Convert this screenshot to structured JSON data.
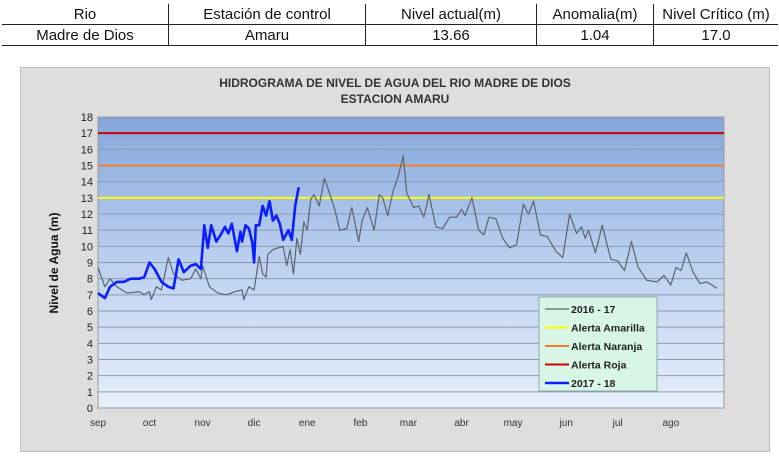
{
  "table": {
    "headers": [
      "Rio",
      "Estación de control",
      "Nivel actual(m)",
      "Anomalia(m)",
      "Nivel Crítico (m)"
    ],
    "row": [
      "Madre de Dios",
      "Amaru",
      "13.66",
      "1.04",
      "17.0"
    ]
  },
  "chart_data": {
    "type": "line",
    "title": "HIDROGRAMA DE NIVEL DE AGUA DEL RIO MADRE DE DIOS",
    "subtitle": "ESTACION AMARU",
    "xlabel": "",
    "ylabel": "Nivel de Agua (m)",
    "ylim": [
      0,
      18
    ],
    "yticks": [
      "0",
      "1",
      "2",
      "3",
      "4",
      "5",
      "6",
      "7",
      "8",
      "9",
      "10",
      "11",
      "12",
      "13",
      "14",
      "15",
      "16",
      "17",
      "18"
    ],
    "xticks": [
      "sep",
      "oct",
      "nov",
      "dic",
      "ene",
      "feb",
      "mar",
      "abr",
      "may",
      "jun",
      "jul",
      "ago"
    ],
    "grid": true,
    "legend_position": "bottom-right",
    "thresholds": [
      {
        "name": "Alerta Amarilla",
        "value": 13,
        "color": "#ffff00"
      },
      {
        "name": "Alerta Naranja",
        "value": 15,
        "color": "#f07f2c"
      },
      {
        "name": "Alerta Roja",
        "value": 17,
        "color": "#d00000"
      }
    ],
    "series": [
      {
        "name": "2016 - 17",
        "color": "#5a6472",
        "points": [
          [
            "09-01",
            8.7
          ],
          [
            "09-05",
            7.5
          ],
          [
            "09-08",
            8.0
          ],
          [
            "09-12",
            7.5
          ],
          [
            "09-18",
            7.1
          ],
          [
            "09-25",
            7.2
          ],
          [
            "09-28",
            7.0
          ],
          [
            "10-01",
            7.2
          ],
          [
            "10-02",
            6.7
          ],
          [
            "10-05",
            7.5
          ],
          [
            "10-08",
            7.3
          ],
          [
            "10-12",
            9.3
          ],
          [
            "10-15",
            8.3
          ],
          [
            "10-20",
            7.9
          ],
          [
            "10-25",
            8.0
          ],
          [
            "10-28",
            8.6
          ],
          [
            "10-31",
            8.0
          ],
          [
            "11-01",
            8.8
          ],
          [
            "11-05",
            7.5
          ],
          [
            "11-10",
            7.1
          ],
          [
            "11-15",
            7.0
          ],
          [
            "11-20",
            7.2
          ],
          [
            "11-24",
            7.3
          ],
          [
            "11-25",
            6.7
          ],
          [
            "11-28",
            7.5
          ],
          [
            "12-01",
            7.3
          ],
          [
            "12-04",
            9.4
          ],
          [
            "12-06",
            8.3
          ],
          [
            "12-08",
            8.1
          ],
          [
            "12-09",
            9.5
          ],
          [
            "12-12",
            9.8
          ],
          [
            "12-18",
            10.0
          ],
          [
            "12-20",
            8.8
          ],
          [
            "12-22",
            9.8
          ],
          [
            "12-24",
            8.3
          ],
          [
            "12-26",
            10.5
          ],
          [
            "12-28",
            9.5
          ],
          [
            "12-30",
            11.5
          ],
          [
            "01-01",
            11.0
          ],
          [
            "01-03",
            12.9
          ],
          [
            "01-05",
            13.2
          ],
          [
            "01-08",
            12.5
          ],
          [
            "01-11",
            14.2
          ],
          [
            "01-14",
            13.3
          ],
          [
            "01-17",
            12.3
          ],
          [
            "01-20",
            11.0
          ],
          [
            "01-24",
            11.1
          ],
          [
            "01-27",
            12.4
          ],
          [
            "01-31",
            10.3
          ],
          [
            "02-02",
            11.6
          ],
          [
            "02-05",
            12.4
          ],
          [
            "02-09",
            11.0
          ],
          [
            "02-12",
            13.2
          ],
          [
            "02-14",
            13.0
          ],
          [
            "02-17",
            11.9
          ],
          [
            "02-20",
            13.4
          ],
          [
            "02-23",
            14.3
          ],
          [
            "02-26",
            15.6
          ],
          [
            "02-28",
            13.3
          ],
          [
            "03-04",
            12.4
          ],
          [
            "03-07",
            12.5
          ],
          [
            "03-10",
            11.8
          ],
          [
            "03-13",
            13.2
          ],
          [
            "03-17",
            11.2
          ],
          [
            "03-21",
            11.1
          ],
          [
            "03-25",
            11.8
          ],
          [
            "03-29",
            11.8
          ],
          [
            "04-01",
            12.3
          ],
          [
            "04-03",
            11.9
          ],
          [
            "04-07",
            13.0
          ],
          [
            "04-11",
            11.0
          ],
          [
            "04-14",
            10.7
          ],
          [
            "04-17",
            11.8
          ],
          [
            "04-21",
            11.7
          ],
          [
            "04-25",
            10.5
          ],
          [
            "04-29",
            9.9
          ],
          [
            "05-03",
            10.1
          ],
          [
            "05-07",
            12.6
          ],
          [
            "05-10",
            12.0
          ],
          [
            "05-13",
            12.8
          ],
          [
            "05-17",
            10.7
          ],
          [
            "05-21",
            10.6
          ],
          [
            "05-26",
            9.7
          ],
          [
            "05-30",
            9.3
          ],
          [
            "06-03",
            12.0
          ],
          [
            "06-07",
            10.8
          ],
          [
            "06-10",
            11.2
          ],
          [
            "06-12",
            10.5
          ],
          [
            "06-14",
            11.0
          ],
          [
            "06-18",
            9.6
          ],
          [
            "06-22",
            11.3
          ],
          [
            "06-27",
            9.2
          ],
          [
            "07-01",
            9.1
          ],
          [
            "07-05",
            8.5
          ],
          [
            "07-09",
            10.3
          ],
          [
            "07-13",
            8.7
          ],
          [
            "07-18",
            7.9
          ],
          [
            "07-24",
            7.8
          ],
          [
            "07-28",
            8.2
          ],
          [
            "08-01",
            7.6
          ],
          [
            "08-04",
            8.7
          ],
          [
            "08-07",
            8.5
          ],
          [
            "08-10",
            9.6
          ],
          [
            "08-14",
            8.4
          ],
          [
            "08-18",
            7.7
          ],
          [
            "08-22",
            7.8
          ],
          [
            "08-28",
            7.4
          ]
        ]
      },
      {
        "name": "2017 - 18",
        "color": "#0a1eff",
        "points": [
          [
            "09-01",
            7.1
          ],
          [
            "09-05",
            6.8
          ],
          [
            "09-08",
            7.5
          ],
          [
            "09-12",
            7.8
          ],
          [
            "09-16",
            7.8
          ],
          [
            "09-20",
            8.0
          ],
          [
            "09-25",
            8.0
          ],
          [
            "09-28",
            8.1
          ],
          [
            "10-01",
            9.0
          ],
          [
            "10-04",
            8.6
          ],
          [
            "10-08",
            7.8
          ],
          [
            "10-12",
            7.5
          ],
          [
            "10-15",
            7.4
          ],
          [
            "10-18",
            9.2
          ],
          [
            "10-21",
            8.4
          ],
          [
            "10-25",
            8.8
          ],
          [
            "10-28",
            8.9
          ],
          [
            "10-31",
            8.6
          ],
          [
            "11-02",
            11.3
          ],
          [
            "11-04",
            9.9
          ],
          [
            "11-06",
            11.3
          ],
          [
            "11-09",
            10.3
          ],
          [
            "11-12",
            10.8
          ],
          [
            "11-14",
            11.2
          ],
          [
            "11-16",
            10.8
          ],
          [
            "11-18",
            11.4
          ],
          [
            "11-21",
            9.7
          ],
          [
            "11-23",
            10.9
          ],
          [
            "11-24",
            10.3
          ],
          [
            "11-26",
            11.3
          ],
          [
            "11-28",
            11.1
          ],
          [
            "11-30",
            10.2
          ],
          [
            "12-01",
            9.0
          ],
          [
            "12-02",
            11.3
          ],
          [
            "12-04",
            11.3
          ],
          [
            "12-06",
            12.5
          ],
          [
            "12-08",
            11.9
          ],
          [
            "12-10",
            12.8
          ],
          [
            "12-12",
            11.6
          ],
          [
            "12-14",
            11.9
          ],
          [
            "12-16",
            11.4
          ],
          [
            "12-18",
            10.4
          ],
          [
            "12-21",
            11.0
          ],
          [
            "12-23",
            10.4
          ],
          [
            "12-25",
            12.5
          ],
          [
            "12-27",
            13.66
          ]
        ]
      }
    ]
  }
}
